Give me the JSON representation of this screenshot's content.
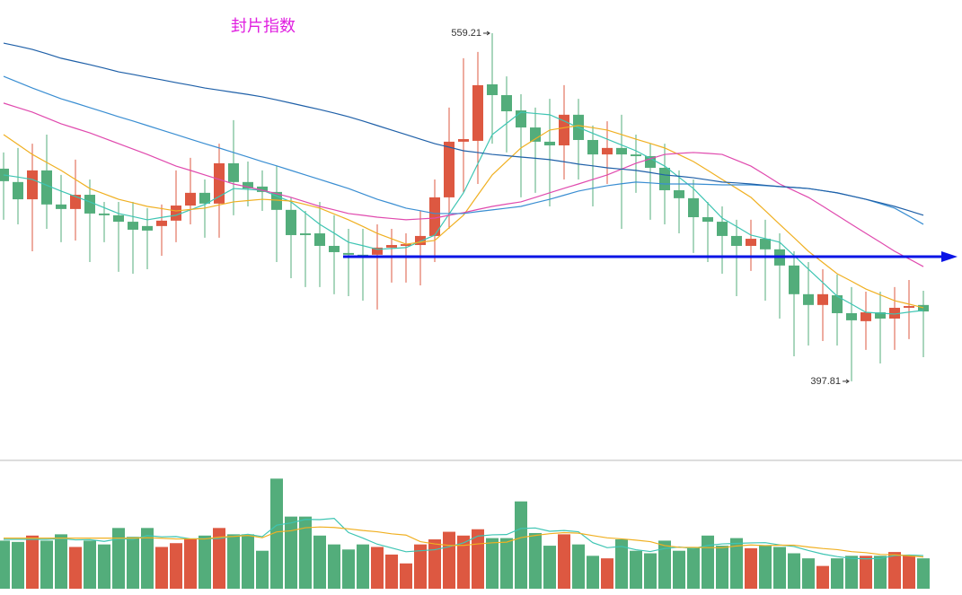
{
  "chart_data": {
    "type": "candlestick",
    "title": "封片指数",
    "title_color": "#e020e0",
    "categories": [
      null,
      null,
      null,
      null,
      null,
      null,
      null,
      null,
      null,
      null,
      null,
      null,
      null,
      null,
      null,
      null,
      null,
      null,
      null,
      null,
      null,
      null,
      null,
      null,
      null,
      null,
      null,
      null,
      null,
      null,
      null,
      null,
      null,
      null,
      null,
      null,
      null,
      null,
      null,
      null,
      null,
      null,
      null,
      null,
      null,
      null,
      null,
      null,
      null,
      null,
      null,
      null,
      null,
      null,
      null,
      null,
      null,
      null,
      null,
      null,
      null,
      null,
      null,
      null,
      null
    ],
    "open": [
      496.4,
      490.2,
      482.2,
      495.6,
      479.8,
      477.7,
      484.3,
      475.6,
      474.8,
      471.8,
      469.8,
      469.8,
      472.3,
      479.3,
      485.2,
      480.2,
      498.9,
      490.2,
      488.1,
      485.6,
      477.3,
      466.4,
      466.4,
      460.6,
      457.3,
      456.5,
      456.5,
      459.8,
      460.6,
      461.0,
      465.2,
      483.1,
      508.9,
      509.3,
      535.5,
      530.5,
      523.4,
      515.5,
      508.9,
      507.2,
      521.4,
      509.7,
      503.0,
      506.0,
      503.0,
      502.2,
      496.8,
      486.4,
      482.7,
      473.9,
      471.8,
      465.2,
      460.6,
      463.9,
      459.0,
      451.5,
      438.2,
      433.2,
      437.7,
      429.4,
      425.7,
      429.8,
      426.9,
      431.9,
      433.2
    ],
    "high": [
      503.9,
      506.0,
      508.0,
      512.2,
      493.5,
      500.6,
      491.4,
      481.0,
      481.0,
      481.0,
      478.1,
      479.8,
      495.6,
      501.4,
      491.4,
      508.0,
      518.9,
      499.7,
      495.6,
      497.6,
      483.1,
      476.8,
      481.0,
      474.8,
      468.5,
      468.5,
      470.6,
      468.5,
      466.4,
      476.8,
      491.4,
      524.7,
      547.6,
      550.5,
      559.21,
      539.2,
      530.9,
      524.7,
      528.8,
      535.1,
      528.8,
      516.4,
      518.4,
      521.4,
      512.2,
      508.0,
      508.0,
      495.6,
      491.4,
      481.0,
      478.9,
      472.7,
      472.7,
      472.7,
      466.4,
      458.1,
      453.1,
      449.8,
      447.3,
      441.5,
      439.4,
      439.4,
      441.5,
      444.8,
      439.8
    ],
    "low": [
      472.7,
      470.6,
      458.1,
      468.5,
      462.3,
      463.1,
      453.1,
      462.3,
      448.6,
      447.7,
      449.8,
      456.0,
      462.3,
      470.6,
      464.4,
      464.4,
      474.8,
      478.9,
      476.8,
      453.1,
      445.6,
      441.5,
      441.5,
      438.2,
      437.3,
      435.2,
      431.1,
      443.6,
      443.6,
      442.3,
      453.1,
      468.5,
      485.2,
      489.3,
      508.0,
      503.9,
      483.1,
      485.2,
      478.9,
      491.4,
      491.4,
      478.9,
      489.3,
      468.5,
      485.2,
      472.7,
      470.6,
      466.4,
      457.3,
      453.1,
      447.7,
      437.3,
      449.0,
      435.2,
      426.9,
      409.4,
      414.4,
      416.5,
      414.4,
      397.81,
      412.4,
      406.1,
      412.4,
      417.4,
      409.0
    ],
    "close": [
      490.6,
      482.2,
      495.6,
      479.8,
      477.7,
      484.3,
      475.6,
      474.8,
      471.8,
      468.1,
      467.7,
      472.3,
      479.3,
      485.2,
      480.2,
      498.9,
      490.2,
      487.2,
      485.6,
      477.3,
      465.6,
      465.6,
      460.6,
      457.7,
      456.5,
      456.0,
      459.8,
      461.0,
      461.4,
      465.2,
      483.1,
      508.9,
      510.1,
      535.1,
      530.5,
      523.0,
      515.5,
      508.9,
      507.2,
      521.4,
      509.7,
      503.0,
      506.0,
      503.0,
      502.2,
      496.8,
      486.4,
      482.7,
      473.9,
      471.8,
      465.2,
      460.6,
      463.9,
      459.0,
      451.5,
      438.2,
      433.2,
      438.2,
      429.4,
      426.1,
      429.8,
      426.9,
      431.9,
      432.7,
      430.2
    ],
    "up_color": "#dd5841",
    "down_color": "#53ad7b",
    "ylim": [
      362.4,
      574.6
    ],
    "lines": [
      {
        "color": "#3ec5b3",
        "values": [
          493.5,
          492.5,
          491.4,
          488.7,
          486.0,
          483.5,
          481.0,
          478.3,
          475.6,
          474.2,
          472.7,
          473.8,
          474.8,
          477.3,
          479.8,
          483.5,
          487.2,
          486.8,
          486.4,
          483.7,
          481.0,
          475.8,
          470.6,
          466.5,
          462.3,
          460.7,
          459.0,
          459.4,
          459.8,
          462.7,
          465.6,
          475.4,
          485.2,
          498.7,
          512.2,
          517.4,
          522.6,
          522.0,
          521.4,
          518.5,
          515.5,
          512.8,
          510.1,
          507.4,
          504.7,
          501.2,
          497.6,
          492.4,
          487.2,
          480.4,
          473.5,
          469.6,
          465.6,
          464.0,
          462.3,
          456.1,
          449.8,
          443.6,
          437.3,
          433.6,
          429.8,
          429.4,
          429.0,
          429.9,
          430.7
        ]
      },
      {
        "color": "#f0b022",
        "values": [
          512.2,
          507.6,
          503.0,
          499.3,
          495.6,
          491.4,
          487.2,
          484.7,
          482.2,
          480.6,
          478.9,
          477.9,
          476.8,
          477.5,
          478.1,
          479.6,
          481.0,
          481.6,
          482.2,
          481.8,
          481.4,
          479.8,
          478.1,
          475.4,
          472.7,
          469.6,
          466.4,
          463.9,
          461.4,
          462.3,
          463.1,
          469.0,
          474.8,
          484.2,
          493.5,
          499.8,
          506.0,
          510.2,
          514.3,
          515.4,
          516.4,
          515.4,
          514.3,
          512.2,
          510.1,
          508.1,
          506.0,
          502.9,
          499.7,
          495.6,
          491.4,
          487.3,
          483.1,
          476.9,
          470.6,
          464.4,
          458.1,
          452.9,
          447.7,
          444.2,
          440.6,
          437.9,
          435.2,
          433.6,
          431.9
        ]
      },
      {
        "color": "#e04aae",
        "values": [
          526.8,
          524.7,
          522.6,
          519.9,
          517.2,
          515.1,
          513.0,
          510.5,
          508.0,
          505.5,
          503.0,
          500.3,
          497.6,
          495.6,
          493.5,
          491.4,
          489.3,
          487.9,
          486.4,
          484.8,
          483.1,
          481.0,
          478.9,
          477.3,
          475.6,
          474.8,
          473.9,
          473.3,
          472.7,
          473.1,
          473.5,
          474.8,
          476.0,
          477.5,
          478.9,
          480.0,
          481.0,
          483.1,
          485.2,
          487.3,
          489.3,
          491.4,
          493.5,
          496.2,
          498.9,
          501.0,
          503.0,
          503.5,
          503.9,
          503.5,
          503.0,
          500.3,
          497.6,
          493.5,
          489.3,
          486.2,
          483.1,
          479.0,
          474.8,
          470.6,
          466.4,
          462.3,
          458.1,
          454.6,
          451.0
        ]
      },
      {
        "color": "#3a8ed2",
        "values": [
          539.2,
          536.5,
          533.8,
          531.3,
          528.8,
          526.8,
          524.7,
          522.6,
          520.5,
          518.5,
          516.4,
          514.3,
          512.2,
          510.1,
          508.0,
          506.0,
          503.9,
          501.8,
          499.7,
          497.7,
          495.6,
          493.5,
          491.4,
          489.3,
          487.2,
          484.7,
          482.2,
          480.2,
          478.1,
          476.9,
          475.6,
          475.6,
          475.6,
          476.5,
          477.3,
          478.1,
          478.9,
          480.6,
          482.2,
          484.1,
          486.0,
          487.3,
          488.5,
          489.4,
          490.2,
          489.8,
          489.3,
          489.3,
          489.3,
          489.1,
          488.9,
          488.9,
          488.9,
          488.5,
          488.1,
          487.7,
          487.2,
          486.2,
          485.2,
          483.7,
          482.2,
          480.2,
          478.1,
          474.4,
          470.6
        ]
      },
      {
        "color": "#1f60a8",
        "values": [
          554.6,
          553.2,
          551.7,
          549.7,
          547.6,
          546.1,
          544.6,
          543.0,
          541.3,
          540.1,
          538.8,
          537.6,
          536.3,
          535.1,
          533.8,
          532.8,
          531.8,
          530.8,
          529.7,
          528.3,
          526.8,
          525.3,
          523.8,
          522.2,
          520.5,
          518.5,
          516.4,
          514.3,
          512.2,
          510.1,
          508.0,
          506.4,
          504.7,
          503.9,
          503.0,
          502.4,
          501.8,
          501.2,
          500.6,
          499.6,
          498.5,
          497.7,
          496.8,
          496.2,
          495.6,
          494.6,
          493.5,
          492.9,
          492.2,
          491.2,
          490.2,
          489.8,
          489.3,
          488.7,
          488.1,
          487.7,
          487.2,
          486.2,
          485.2,
          483.7,
          482.2,
          480.6,
          478.9,
          476.9,
          474.8
        ]
      }
    ],
    "hline": {
      "value": 455.6,
      "color": "#0a14e6"
    },
    "volume": [
      38,
      37,
      42,
      38,
      43,
      33,
      38,
      35,
      48,
      41,
      48,
      33,
      36,
      39,
      42,
      48,
      43,
      43,
      30,
      87,
      57,
      57,
      42,
      35,
      31,
      35,
      33,
      27,
      20,
      35,
      39,
      45,
      42,
      47,
      40,
      40,
      69,
      44,
      34,
      43,
      35,
      26,
      24,
      39,
      30,
      28,
      38,
      30,
      33,
      42,
      34,
      40,
      32,
      34,
      33,
      28,
      24,
      18,
      24,
      26,
      26,
      26,
      29,
      26,
      24
    ],
    "volume_ylim": [
      0,
      100
    ],
    "volume_lines": [
      {
        "color": "#3ec5b3",
        "values": [
          39,
          39,
          39,
          39,
          39.6,
          38.6,
          38.8,
          37.4,
          39.4,
          39.0,
          42.0,
          41.0,
          41.2,
          39.4,
          39.6,
          39.6,
          41.6,
          43.0,
          41.2,
          50.2,
          52.0,
          54.8,
          54.6,
          55.6,
          44.4,
          40.0,
          35.2,
          32.2,
          29.2,
          30.0,
          30.8,
          33.2,
          36.2,
          41.6,
          42.6,
          42.8,
          47.6,
          48.0,
          45.4,
          46.0,
          45.0,
          36.4,
          32.4,
          33.4,
          30.8,
          29.4,
          31.8,
          33.0,
          31.8,
          34.2,
          35.4,
          35.8,
          36.2,
          36.4,
          34.6,
          33.4,
          30.2,
          27.4,
          25.4,
          24.0,
          23.6,
          24.0,
          26.2,
          26.6,
          26.2
        ]
      },
      {
        "color": "#f0b022",
        "values": [
          40,
          40,
          40,
          40,
          40,
          40,
          40,
          40,
          40,
          40,
          40.3,
          39.9,
          39.3,
          39.4,
          39.3,
          40.8,
          41.3,
          42.1,
          40.3,
          44.9,
          45.8,
          48.2,
          48.8,
          48.4,
          47.3,
          46.0,
          45.0,
          43.4,
          42.4,
          37.2,
          35.4,
          34.2,
          34.2,
          35.4,
          36.3,
          36.8,
          40.4,
          42.1,
          43.5,
          44.3,
          43.9,
          42.0,
          40.2,
          39.4,
          38.4,
          37.2,
          34.1,
          32.7,
          32.6,
          32.5,
          32.4,
          33.8,
          34.6,
          34.1,
          34.4,
          34.4,
          33.0,
          31.8,
          30.9,
          29.3,
          28.5,
          27.1,
          26.8,
          26.0,
          25.1
        ]
      }
    ],
    "grid": false
  }
}
